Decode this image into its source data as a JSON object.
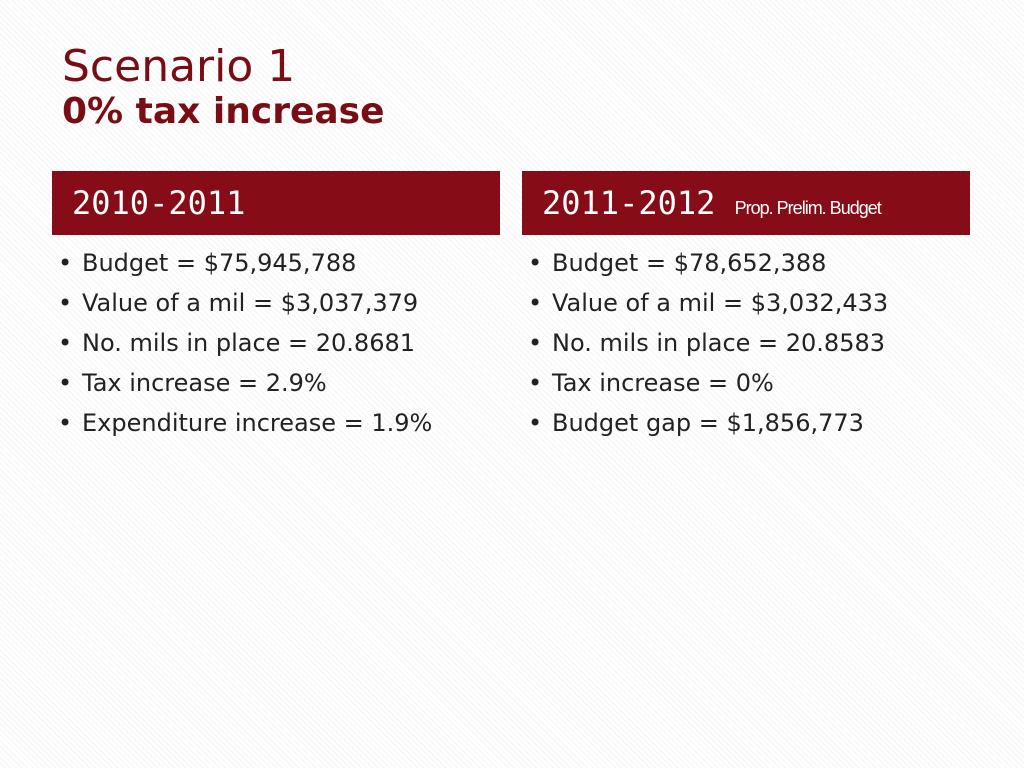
{
  "title": {
    "line1": "Scenario 1",
    "line2": "0% tax increase"
  },
  "columns": [
    {
      "heading": "2010-2011",
      "items": [
        "Budget = $75,945,788",
        "Value of a mil = $3,037,379",
        "No. mils in place = 20.8681",
        "Tax increase = 2.9%",
        "Expenditure increase = 1.9%"
      ]
    },
    {
      "heading": "2011-2012",
      "subheading": "Prop. Prelim. Budget",
      "items": [
        "Budget = $78,652,388",
        "Value of a mil = $3,032,433",
        "No. mils in place = 20.8583",
        "Tax increase = 0%",
        "Budget gap = $1,856,773"
      ]
    }
  ]
}
